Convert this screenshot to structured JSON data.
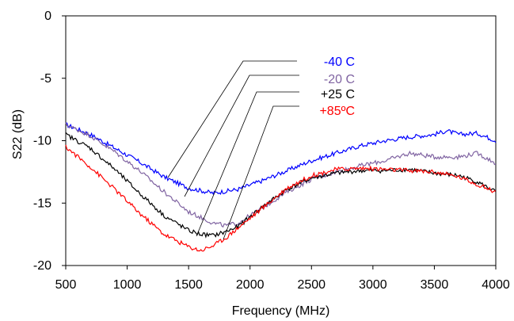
{
  "chart_data": {
    "type": "line",
    "title": "",
    "xlabel": "Frequency (MHz)",
    "ylabel": "S22 (dB)",
    "xlim": [
      500,
      4000
    ],
    "ylim": [
      -20,
      0
    ],
    "xticks": [
      500,
      1000,
      1500,
      2000,
      2500,
      3000,
      3500,
      4000
    ],
    "yticks": [
      0,
      -5,
      -10,
      -15,
      -20
    ],
    "xtick_labels": [
      "500",
      "1000",
      "1500",
      "2000",
      "2500",
      "3000",
      "3500",
      "4000"
    ],
    "ytick_labels": [
      "0",
      "-5",
      "-10",
      "-15",
      "-20"
    ],
    "grid": false,
    "legend": "callout labels with leader lines, upper right",
    "series": [
      {
        "name": "-40 C",
        "color": "#0000ff",
        "x": [
          500,
          700,
          900,
          1100,
          1300,
          1500,
          1700,
          1900,
          2100,
          2300,
          2500,
          2700,
          2900,
          3100,
          3300,
          3500,
          3600,
          3700,
          3850,
          4000
        ],
        "y": [
          -8.7,
          -9.5,
          -10.6,
          -11.7,
          -12.9,
          -13.8,
          -14.2,
          -13.9,
          -13.2,
          -12.4,
          -11.6,
          -11.0,
          -10.4,
          -10.0,
          -9.7,
          -9.5,
          -9.2,
          -9.5,
          -9.4,
          -10.0
        ]
      },
      {
        "name": "-20 C",
        "color": "#8064a2",
        "x": [
          500,
          700,
          900,
          1100,
          1300,
          1500,
          1700,
          1800,
          1900,
          2100,
          2300,
          2500,
          2700,
          2900,
          3100,
          3300,
          3500,
          3700,
          3850,
          4000
        ],
        "y": [
          -8.7,
          -9.6,
          -10.9,
          -12.4,
          -14.1,
          -15.7,
          -16.6,
          -16.8,
          -16.6,
          -15.4,
          -14.1,
          -13.1,
          -12.5,
          -12.0,
          -11.6,
          -11.0,
          -11.3,
          -11.3,
          -11.0,
          -11.8
        ]
      },
      {
        "name": "+25 C",
        "color": "#000000",
        "x": [
          500,
          700,
          900,
          1100,
          1300,
          1500,
          1600,
          1700,
          1800,
          1900,
          2100,
          2300,
          2500,
          2700,
          2900,
          3100,
          3300,
          3500,
          3700,
          3850,
          4000
        ],
        "y": [
          -9.5,
          -10.6,
          -12.3,
          -14.2,
          -16.0,
          -17.2,
          -17.5,
          -17.6,
          -17.3,
          -16.9,
          -15.3,
          -13.9,
          -13.0,
          -12.6,
          -12.4,
          -12.4,
          -12.3,
          -12.6,
          -12.8,
          -13.3,
          -14.1
        ]
      },
      {
        "name": "+85ºC",
        "color": "#ff0000",
        "x": [
          500,
          700,
          900,
          1100,
          1300,
          1500,
          1600,
          1700,
          1800,
          1900,
          2100,
          2300,
          2500,
          2700,
          2900,
          3100,
          3300,
          3500,
          3700,
          3850,
          4000
        ],
        "y": [
          -10.5,
          -12.1,
          -13.9,
          -15.8,
          -17.5,
          -18.5,
          -18.8,
          -18.4,
          -17.8,
          -17.0,
          -15.4,
          -13.8,
          -12.8,
          -12.3,
          -12.2,
          -12.3,
          -12.4,
          -12.5,
          -12.9,
          -13.5,
          -14.1
        ]
      }
    ]
  }
}
